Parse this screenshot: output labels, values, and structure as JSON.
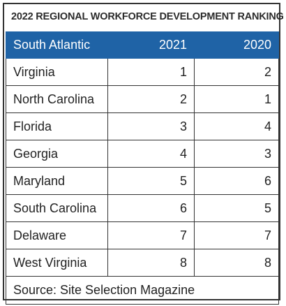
{
  "title": "2022 REGIONAL WORKFORCE DEVELOPMENT RANKING",
  "header": {
    "region": "South Atlantic",
    "year1": "2021",
    "year2": "2020"
  },
  "rows": [
    {
      "state": "Virginia",
      "y2021": "1",
      "y2020": "2"
    },
    {
      "state": "North Carolina",
      "y2021": "2",
      "y2020": "1"
    },
    {
      "state": "Florida",
      "y2021": "3",
      "y2020": "4"
    },
    {
      "state": "Georgia",
      "y2021": "4",
      "y2020": "3"
    },
    {
      "state": "Maryland",
      "y2021": "5",
      "y2020": "6"
    },
    {
      "state": "South Carolina",
      "y2021": "6",
      "y2020": "5"
    },
    {
      "state": "Delaware",
      "y2021": "7",
      "y2020": "7"
    },
    {
      "state": "West Virginia",
      "y2021": "8",
      "y2020": "8"
    }
  ],
  "source": "Source: Site Selection Magazine",
  "colors": {
    "header_bg": "#1f63a6",
    "header_text": "#ffffff",
    "border": "#333333"
  }
}
